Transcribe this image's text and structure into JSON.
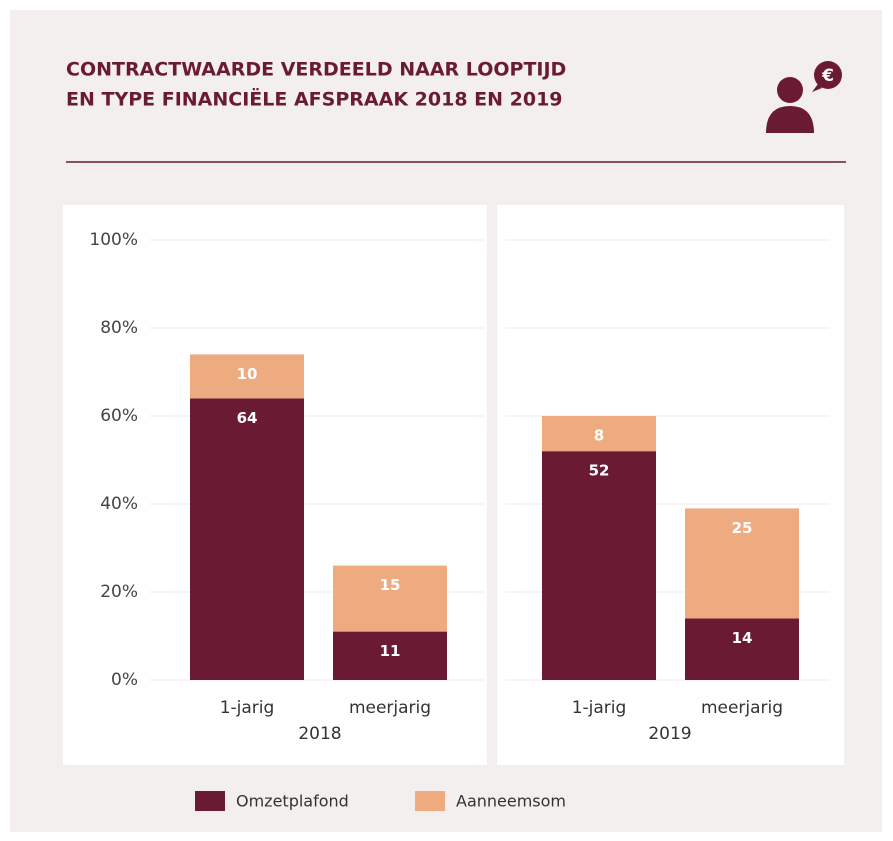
{
  "title": [
    "CONTRACTWAARDE VERDEELD NAAR LOOPTIJD",
    "EN TYPE FINANCIËLE AFSPRAAK 2018 EN 2019"
  ],
  "icon": {
    "symbol": "€"
  },
  "chart_data": [
    {
      "type": "stacked_bar",
      "xlabel": "2018",
      "categories": [
        "1-jarig",
        "meerjarig"
      ],
      "series": [
        {
          "name": "Omzetplafond",
          "color": "#6b1a33",
          "values": [
            64,
            11
          ]
        },
        {
          "name": "Aanneemsom",
          "color": "#eeab80",
          "values": [
            10,
            15
          ]
        }
      ],
      "ylim": [
        0,
        100
      ],
      "yticks": [
        {
          "value": 0,
          "label": "0%"
        },
        {
          "value": 20,
          "label": "20%"
        },
        {
          "value": 40,
          "label": "40%"
        },
        {
          "value": 60,
          "label": "60%"
        },
        {
          "value": 80,
          "label": "80%"
        },
        {
          "value": 100,
          "label": "100%"
        }
      ],
      "grid": true
    },
    {
      "type": "stacked_bar",
      "xlabel": "2019",
      "categories": [
        "1-jarig",
        "meerjarig"
      ],
      "series": [
        {
          "name": "Omzetplafond",
          "color": "#6b1a33",
          "values": [
            52,
            14
          ]
        },
        {
          "name": "Aanneemsom",
          "color": "#eeab80",
          "values": [
            8,
            25
          ]
        }
      ],
      "ylim": [
        0,
        100
      ],
      "yticks": [
        0,
        20,
        40,
        60,
        80,
        100
      ],
      "grid": true
    }
  ]
}
